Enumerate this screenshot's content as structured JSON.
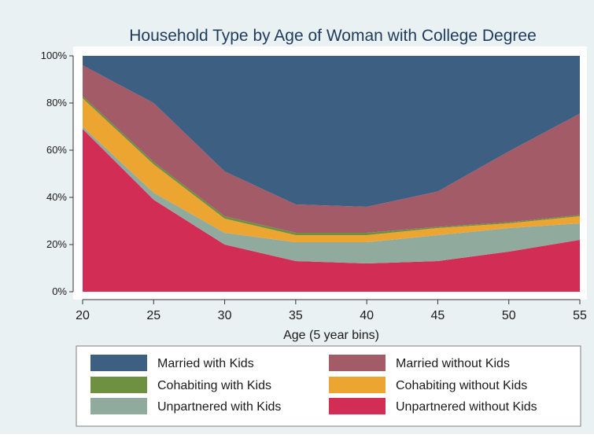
{
  "chart_data": {
    "type": "area",
    "stacked": true,
    "percent": true,
    "title": "Household Type by Age of Woman with College Degree",
    "xlabel": "Age (5 year bins)",
    "ylabel": "",
    "x": [
      20,
      25,
      30,
      35,
      40,
      45,
      50,
      55
    ],
    "xlim": [
      20,
      55
    ],
    "ylim": [
      0,
      100
    ],
    "xticks": [
      "20",
      "25",
      "30",
      "35",
      "40",
      "45",
      "50",
      "55"
    ],
    "yticks": [
      "0%",
      "20%",
      "40%",
      "60%",
      "80%",
      "100%"
    ],
    "grid": false,
    "legend_position": "bottom",
    "series": [
      {
        "name": "Unpartnered without Kids",
        "color": "#d22e55",
        "values": [
          69,
          39,
          20,
          13,
          12,
          13,
          17,
          22
        ]
      },
      {
        "name": "Unpartnered with Kids",
        "color": "#90ab9e",
        "values": [
          1,
          3,
          5,
          8,
          9,
          11,
          10,
          7
        ]
      },
      {
        "name": "Cohabiting without Kids",
        "color": "#eda532",
        "values": [
          12,
          12,
          6,
          3,
          3,
          3,
          2,
          3
        ]
      },
      {
        "name": "Cohabiting with Kids",
        "color": "#6d9041",
        "values": [
          1,
          1,
          1,
          1,
          1,
          0.5,
          0.5,
          0.5
        ]
      },
      {
        "name": "Married without Kids",
        "color": "#a35b67",
        "values": [
          13,
          25,
          19,
          12,
          11,
          15,
          30,
          43
        ]
      },
      {
        "name": "Married with Kids",
        "color": "#3d5f82",
        "values": [
          4,
          20,
          49,
          63,
          64,
          57.5,
          40.5,
          24.5
        ]
      }
    ],
    "legend_order": [
      "Married with Kids",
      "Married without Kids",
      "Cohabiting with Kids",
      "Cohabiting without Kids",
      "Unpartnered with Kids",
      "Unpartnered without Kids"
    ]
  }
}
